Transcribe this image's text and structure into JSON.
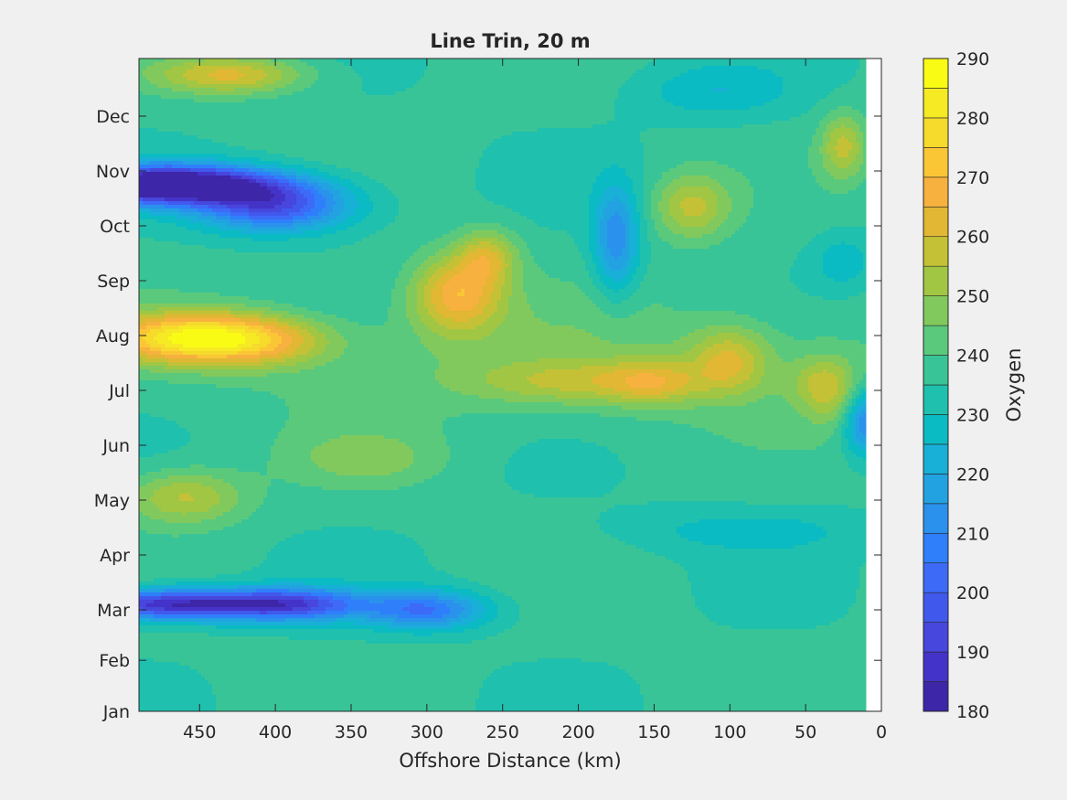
{
  "chart_data": {
    "type": "heatmap",
    "title": "Line Trin, 20 m",
    "xlabel": "Offshore Distance (km)",
    "ylabel": "",
    "colorbar_label": "Oxygen",
    "xlim": [
      490,
      0
    ],
    "x_reversed": true,
    "x_ticks": [
      450,
      400,
      350,
      300,
      250,
      200,
      150,
      100,
      50,
      0
    ],
    "y_ticks": [
      "Jan",
      "Feb",
      "Mar",
      "Apr",
      "May",
      "Jun",
      "Jul",
      "Aug",
      "Sep",
      "Oct",
      "Nov",
      "Dec"
    ],
    "y_month_positions": [
      0.0,
      0.93,
      1.85,
      2.85,
      3.85,
      4.85,
      5.85,
      6.85,
      7.85,
      8.85,
      9.85,
      10.85
    ],
    "y_max": 11.9,
    "data_x_range": [
      490,
      10
    ],
    "colorbar_ticks": [
      290,
      280,
      270,
      260,
      250,
      240,
      230,
      220,
      210,
      200,
      190,
      180
    ],
    "clim": [
      180,
      290
    ],
    "level_step": 5,
    "colormap": [
      "#3e26a8",
      "#4433c8",
      "#4746dd",
      "#4158ed",
      "#3d6af7",
      "#2f7ffb",
      "#2a91ec",
      "#23a2e1",
      "#18b0d7",
      "#0bbbc3",
      "#1fc0ad",
      "#39c497",
      "#5bc97c",
      "#82c95d",
      "#a1c643",
      "#c5c136",
      "#e1b733",
      "#f7b13f",
      "#fbc636",
      "#f6da2c",
      "#f5ea24",
      "#f9fb14"
    ],
    "features": [
      {
        "x": 460,
        "y": 3.9,
        "amp": 20,
        "sx": 40,
        "sy": 0.5
      },
      {
        "x": 340,
        "y": 4.6,
        "amp": 10,
        "sx": 50,
        "sy": 0.5
      },
      {
        "x": 90,
        "y": 3.3,
        "amp": -8,
        "sx": 80,
        "sy": 0.4
      },
      {
        "x": 30,
        "y": 5.7,
        "amp": 10,
        "sx": 20,
        "sy": 0.6
      },
      {
        "x": 40,
        "y": 6.0,
        "amp": 12,
        "sx": 20,
        "sy": 0.5
      },
      {
        "x": 10,
        "y": 5.3,
        "amp": -30,
        "sx": 15,
        "sy": 0.6
      },
      {
        "x": 470,
        "y": 1.95,
        "amp": -50,
        "sx": 60,
        "sy": 0.28
      },
      {
        "x": 390,
        "y": 1.95,
        "amp": -40,
        "sx": 50,
        "sy": 0.3
      },
      {
        "x": 300,
        "y": 1.85,
        "amp": -30,
        "sx": 40,
        "sy": 0.35
      },
      {
        "x": 450,
        "y": 6.8,
        "amp": 50,
        "sx": 60,
        "sy": 0.45
      },
      {
        "x": 400,
        "y": 6.7,
        "amp": 10,
        "sx": 40,
        "sy": 0.45
      },
      {
        "x": 280,
        "y": 7.6,
        "amp": 30,
        "sx": 30,
        "sy": 0.7
      },
      {
        "x": 260,
        "y": 8.3,
        "amp": 20,
        "sx": 20,
        "sy": 0.5
      },
      {
        "x": 200,
        "y": 6.0,
        "amp": 15,
        "sx": 70,
        "sy": 0.4
      },
      {
        "x": 150,
        "y": 6.0,
        "amp": 15,
        "sx": 30,
        "sy": 0.4
      },
      {
        "x": 100,
        "y": 6.4,
        "amp": 20,
        "sx": 25,
        "sy": 0.6
      },
      {
        "x": 470,
        "y": 9.6,
        "amp": -70,
        "sx": 70,
        "sy": 0.35
      },
      {
        "x": 400,
        "y": 9.2,
        "amp": -40,
        "sx": 50,
        "sy": 0.45
      },
      {
        "x": 125,
        "y": 9.2,
        "amp": 20,
        "sx": 25,
        "sy": 0.6
      },
      {
        "x": 175,
        "y": 8.6,
        "amp": -25,
        "sx": 15,
        "sy": 1.0
      },
      {
        "x": 25,
        "y": 10.3,
        "amp": 20,
        "sx": 15,
        "sy": 0.6
      },
      {
        "x": 25,
        "y": 8.2,
        "amp": -10,
        "sx": 20,
        "sy": 0.5
      },
      {
        "x": 430,
        "y": 11.6,
        "amp": 25,
        "sx": 50,
        "sy": 0.35
      },
      {
        "x": 110,
        "y": 11.3,
        "amp": -10,
        "sx": 50,
        "sy": 0.5
      }
    ]
  }
}
